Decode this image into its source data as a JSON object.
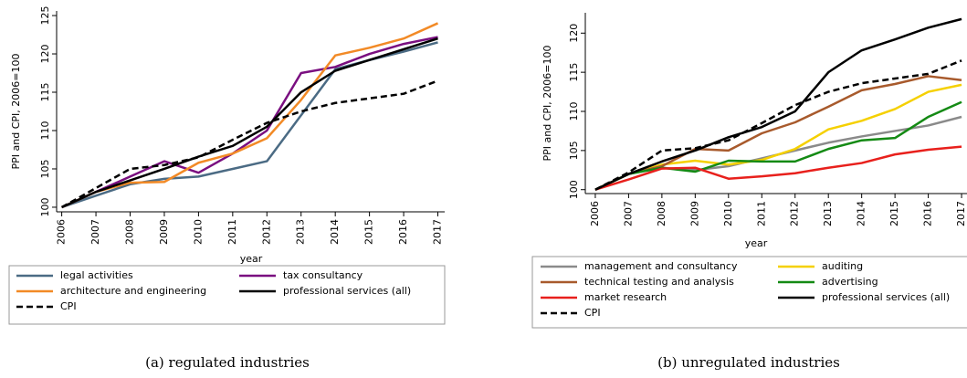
{
  "chart_data": [
    {
      "type": "line",
      "caption": "(a) regulated industries",
      "ylabel": "PPI and CPI, 2006=100",
      "xlabel": "year",
      "x": [
        2006,
        2007,
        2008,
        2009,
        2010,
        2011,
        2012,
        2013,
        2014,
        2015,
        2016,
        2017
      ],
      "xlim": [
        2005.85,
        2017.2
      ],
      "xticks": [
        2006,
        2007,
        2008,
        2009,
        2010,
        2011,
        2012,
        2013,
        2014,
        2015,
        2016,
        2017
      ],
      "ylim": [
        99.4,
        125.6
      ],
      "yticks": [
        100,
        105,
        110,
        115,
        120,
        125
      ],
      "series": [
        {
          "name": "legal activities",
          "color": "#4b6b84",
          "dashed": false,
          "values": [
            100,
            101.5,
            103,
            103.7,
            104,
            105,
            106,
            112,
            118,
            119.2,
            120.3,
            121.5
          ]
        },
        {
          "name": "tax consultancy",
          "color": "#7a0f80",
          "dashed": false,
          "values": [
            100,
            102,
            104,
            106,
            104.5,
            107,
            110,
            117.5,
            118.3,
            120,
            121.3,
            122.2
          ]
        },
        {
          "name": "architecture and engineering",
          "color": "#f28a26",
          "dashed": false,
          "values": [
            100,
            102,
            103.2,
            103.3,
            105.8,
            107,
            109,
            114,
            119.8,
            120.8,
            122,
            124
          ]
        },
        {
          "name": "professional services (all)",
          "color": "#000000",
          "dashed": false,
          "values": [
            100,
            102,
            103.5,
            105,
            106.6,
            108,
            110.5,
            115,
            117.8,
            119.2,
            120.6,
            122
          ]
        },
        {
          "name": "CPI",
          "color": "#000000",
          "dashed": true,
          "values": [
            100,
            102.5,
            105,
            105.5,
            106.5,
            108.8,
            111,
            112.5,
            113.6,
            114.2,
            114.8,
            116.5
          ]
        }
      ]
    },
    {
      "type": "line",
      "caption": "(b) unregulated industries",
      "ylabel": "PPI and CPI, 2006=100",
      "xlabel": "year",
      "x": [
        2006,
        2007,
        2008,
        2009,
        2010,
        2011,
        2012,
        2013,
        2014,
        2015,
        2016,
        2017
      ],
      "xlim": [
        2005.7,
        2017.3
      ],
      "xticks": [
        2006,
        2007,
        2008,
        2009,
        2010,
        2011,
        2012,
        2013,
        2014,
        2015,
        2016,
        2017
      ],
      "ylim": [
        99.5,
        122.6
      ],
      "yticks": [
        100,
        105,
        110,
        115,
        120
      ],
      "series": [
        {
          "name": "management and consultancy",
          "color": "#8a8a8a",
          "dashed": false,
          "values": [
            100,
            102,
            102.8,
            102.5,
            103,
            104,
            105,
            106,
            106.8,
            107.5,
            108.2,
            109.3
          ]
        },
        {
          "name": "auditing",
          "color": "#f5d000",
          "dashed": false,
          "values": [
            100,
            102,
            103.2,
            103.7,
            103.2,
            103.8,
            105.2,
            107.7,
            108.8,
            110.3,
            112.5,
            113.4
          ]
        },
        {
          "name": "technical testing and analysis",
          "color": "#a85a2c",
          "dashed": false,
          "values": [
            100,
            102,
            103,
            105.2,
            105,
            107.2,
            108.6,
            110.6,
            112.7,
            113.5,
            114.5,
            114
          ]
        },
        {
          "name": "advertising",
          "color": "#148a14",
          "dashed": false,
          "values": [
            100,
            102,
            102.8,
            102.3,
            103.7,
            103.6,
            103.6,
            105.2,
            106.3,
            106.6,
            109.3,
            111.2
          ]
        },
        {
          "name": "market research",
          "color": "#e8201c",
          "dashed": false,
          "values": [
            100,
            101.3,
            102.7,
            102.8,
            101.4,
            101.7,
            102.1,
            102.8,
            103.4,
            104.5,
            105.1,
            105.5
          ]
        },
        {
          "name": "professional services (all)",
          "color": "#000000",
          "dashed": false,
          "values": [
            100,
            102,
            103.6,
            105,
            106.7,
            108,
            110,
            115,
            117.8,
            119.2,
            120.7,
            121.8
          ]
        },
        {
          "name": "CPI",
          "color": "#000000",
          "dashed": true,
          "values": [
            100,
            102.2,
            105,
            105.3,
            106.3,
            108.5,
            110.8,
            112.5,
            113.6,
            114.2,
            114.8,
            116.5
          ]
        }
      ]
    }
  ]
}
